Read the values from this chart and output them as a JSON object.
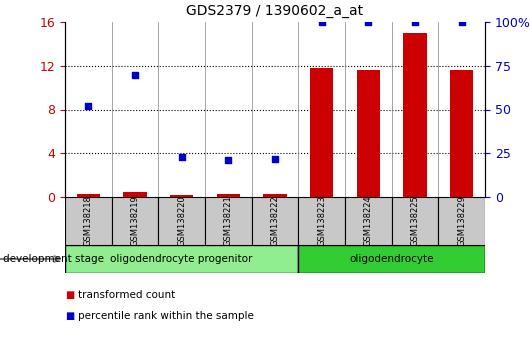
{
  "title": "GDS2379 / 1390602_a_at",
  "samples": [
    "GSM138218",
    "GSM138219",
    "GSM138220",
    "GSM138221",
    "GSM138222",
    "GSM138223",
    "GSM138224",
    "GSM138225",
    "GSM138229"
  ],
  "red_bars": [
    0.32,
    0.42,
    0.22,
    0.28,
    0.28,
    11.8,
    11.6,
    15.0,
    11.6
  ],
  "blue_dots": [
    52,
    70,
    23,
    21,
    22,
    100,
    100,
    100,
    100
  ],
  "ylim_left": [
    0,
    16
  ],
  "ylim_right": [
    0,
    100
  ],
  "yticks_left": [
    0,
    4,
    8,
    12,
    16
  ],
  "yticks_right": [
    0,
    25,
    50,
    75,
    100
  ],
  "ytick_labels_right": [
    "0",
    "25",
    "50",
    "75",
    "100%"
  ],
  "groups": [
    {
      "label": "oligodendrocyte progenitor",
      "start": 0,
      "end": 5,
      "color": "#90EE90"
    },
    {
      "label": "oligodendrocyte",
      "start": 5,
      "end": 9,
      "color": "#32CD32"
    }
  ],
  "sample_box_color": "#C8C8C8",
  "bar_color": "#CC0000",
  "dot_color": "#0000CC",
  "bg_color": "#FFFFFF",
  "left_tick_color": "#CC0000",
  "right_tick_color": "#0000CC",
  "legend_red_label": "transformed count",
  "legend_blue_label": "percentile rank within the sample",
  "dev_stage_label": "development stage",
  "bar_width": 0.5
}
